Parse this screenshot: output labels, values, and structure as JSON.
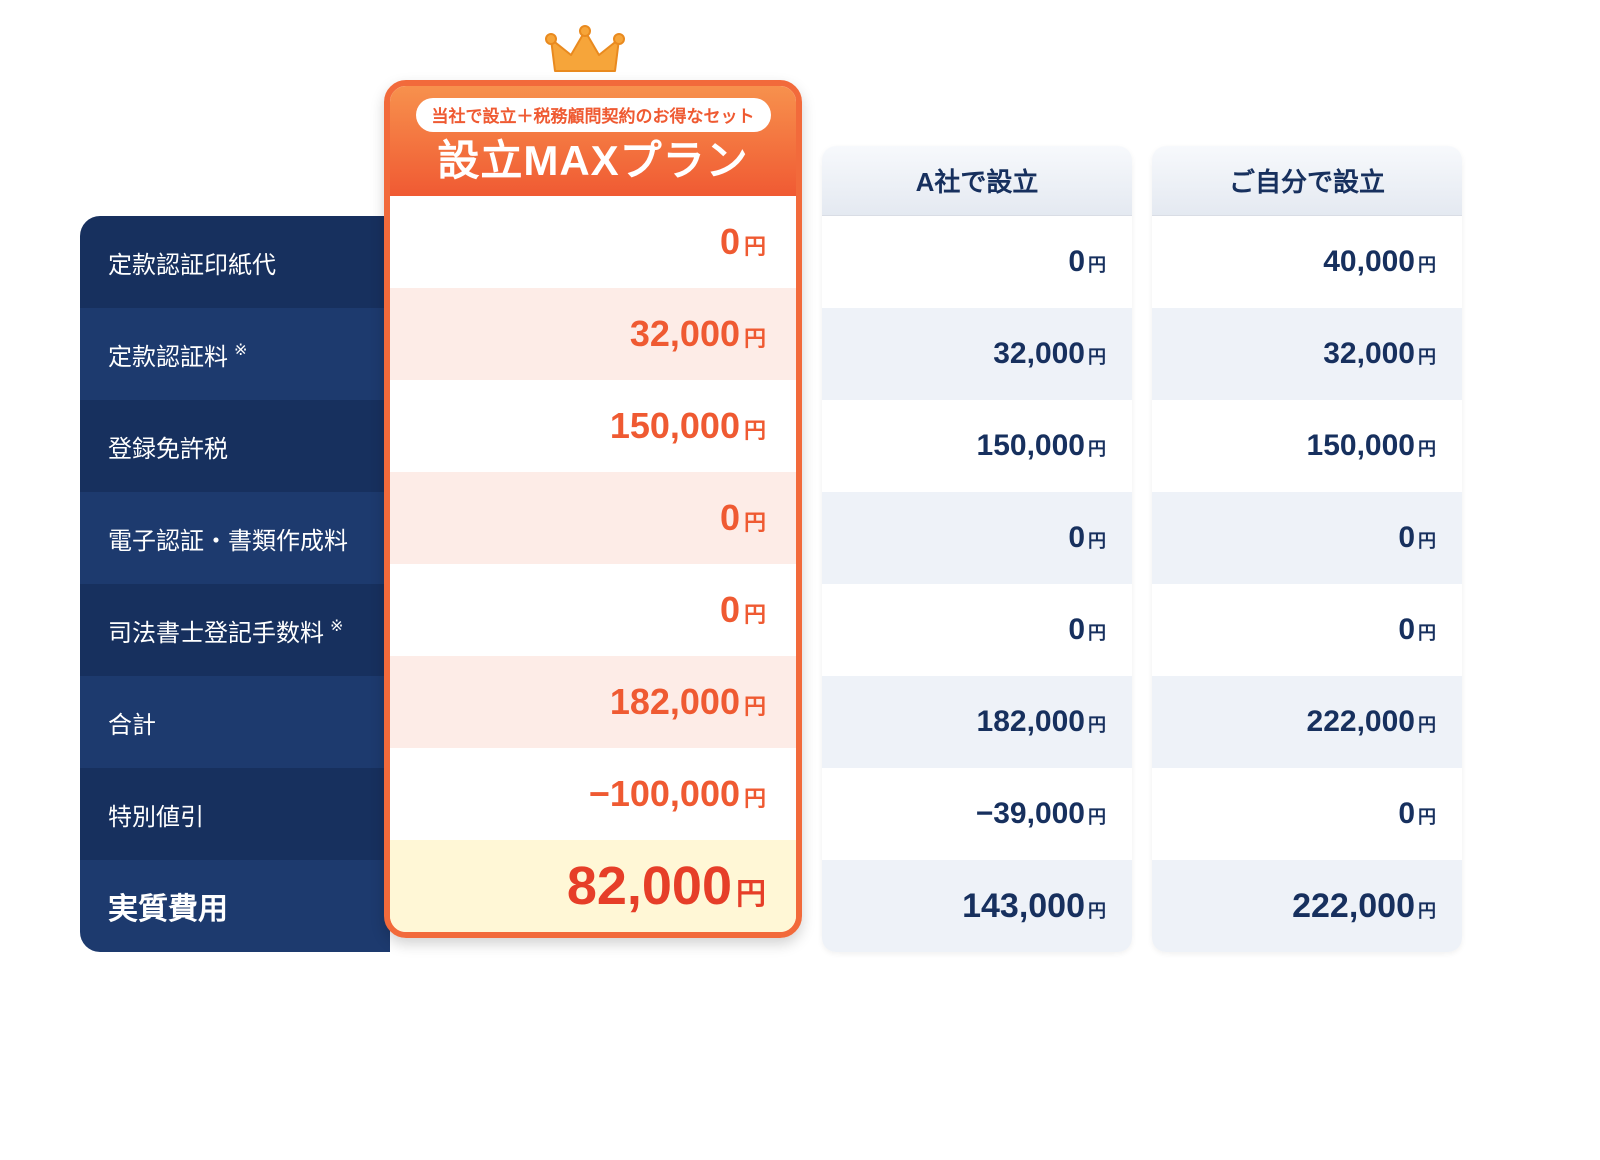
{
  "colors": {
    "label_bg_a": "#17305e",
    "label_bg_b": "#1d3a6e",
    "feat_border": "#f26a3b",
    "feat_head_grad": "linear-gradient(180deg,#f7914d 0%,#f05a33 100%)",
    "feat_text": "#ef5a32",
    "feat_row_a": "#ffffff",
    "feat_row_b": "#fdece7",
    "feat_total_bg": "#fff7d6",
    "feat_total_color": "#e63e28",
    "plain_head_grad": "linear-gradient(180deg,#f7f9fc 0%,#e4e9f1 100%)",
    "plain_text": "#17305e",
    "plain_row_a": "#ffffff",
    "plain_row_b": "#eef2f8",
    "crown_fill": "#f6a53a",
    "crown_stroke": "#e98a1f"
  },
  "yen_suffix": "円",
  "rows": [
    {
      "label": "定款認証印紙代",
      "note": ""
    },
    {
      "label": "定款認証料",
      "note": "※"
    },
    {
      "label": "登録免許税",
      "note": ""
    },
    {
      "label": "電子認証・書類作成料",
      "note": ""
    },
    {
      "label": "司法書士登記手数料",
      "note": "※"
    },
    {
      "label": "合計",
      "note": ""
    },
    {
      "label": "特別値引",
      "note": ""
    }
  ],
  "total_label": "実質費用",
  "featured": {
    "pill": "当社で設立＋税務顧問契約のお得なセット",
    "title": "設立MAXプラン",
    "values": [
      "0",
      "32,000",
      "150,000",
      "0",
      "0",
      "182,000",
      "−100,000"
    ],
    "total": "82,000"
  },
  "columns": [
    {
      "title": "A社で設立",
      "values": [
        "0",
        "32,000",
        "150,000",
        "0",
        "0",
        "182,000",
        "−39,000"
      ],
      "total": "143,000"
    },
    {
      "title": "ご自分で設立",
      "values": [
        "40,000",
        "32,000",
        "150,000",
        "0",
        "0",
        "222,000",
        "0"
      ],
      "total": "222,000"
    }
  ]
}
